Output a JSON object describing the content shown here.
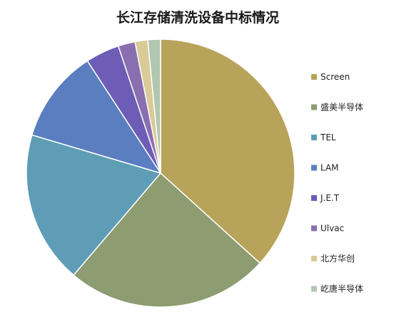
{
  "chart_data": {
    "type": "pie",
    "title": "长江存储清洗设备中标情况",
    "legend_position": "right",
    "categories": [
      "Screen",
      "盛美半导体",
      "TEL",
      "LAM",
      "J.E.T",
      "Ulvac",
      "北方华创",
      "屹唐半导体"
    ],
    "values": [
      36,
      24,
      18,
      11,
      4,
      2,
      1.5,
      1.5
    ],
    "colors": [
      "#B8A35A",
      "#8E9C72",
      "#5E9DB5",
      "#5A7EC0",
      "#6D5DB6",
      "#8A6FB0",
      "#D9CB97",
      "#B2C7B1"
    ]
  }
}
